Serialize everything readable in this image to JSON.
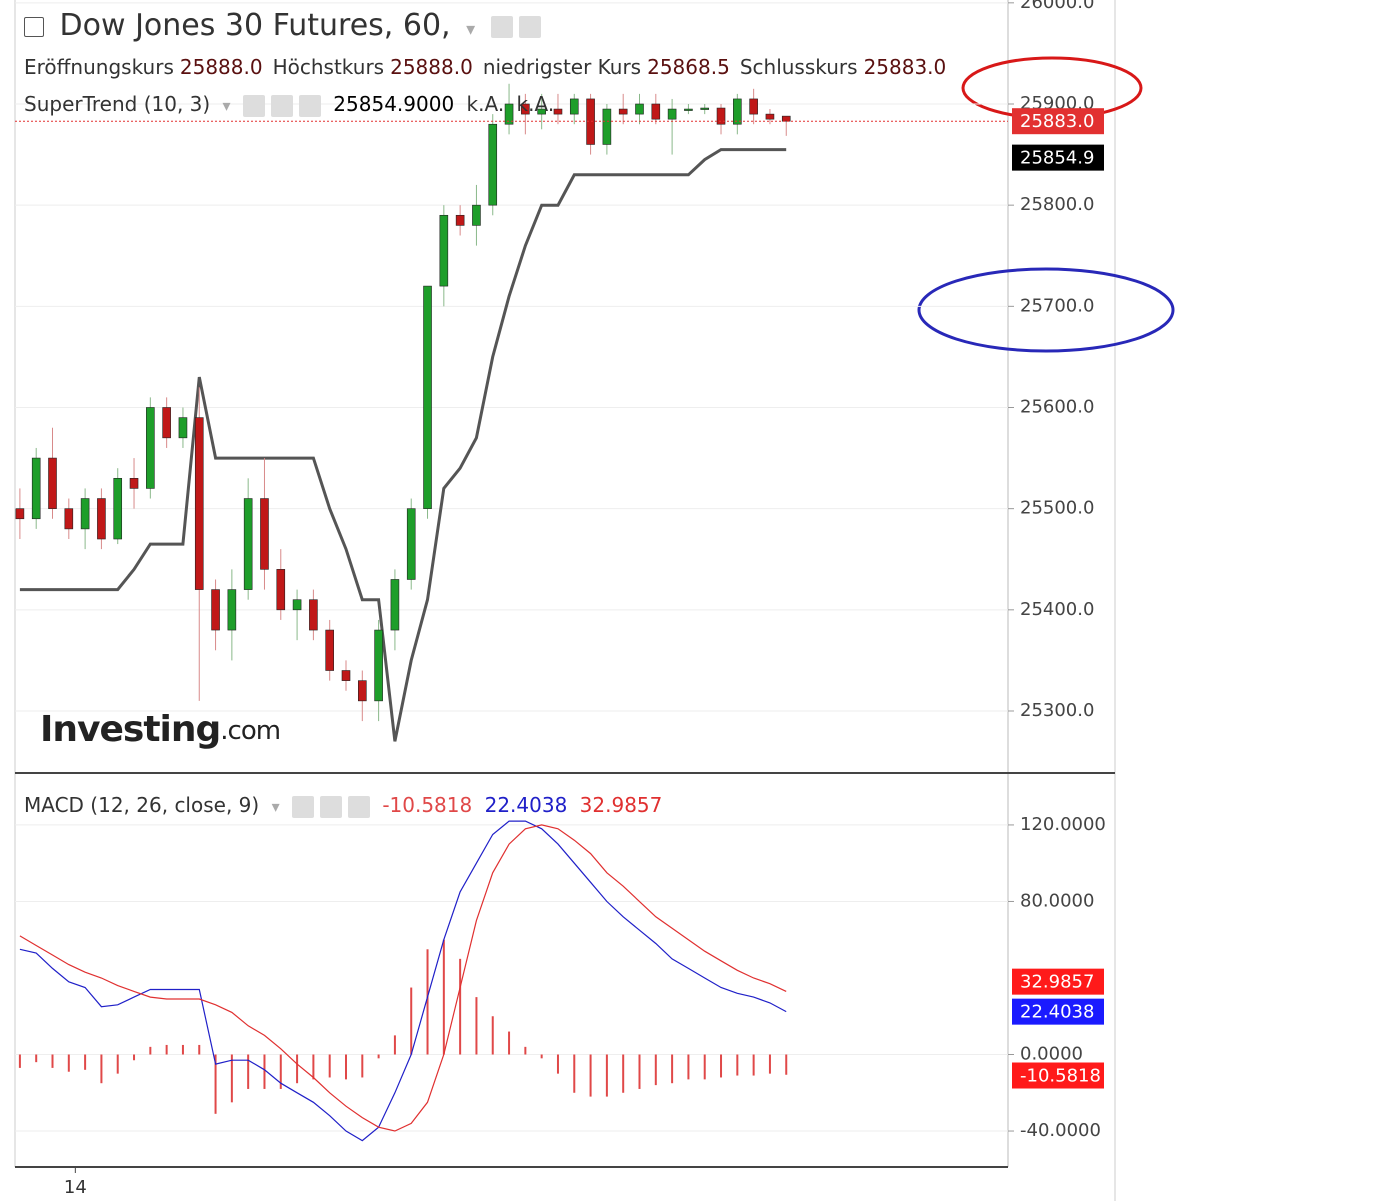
{
  "chart_data": [
    {
      "type": "candlestick",
      "title": "Dow Jones 30 Futures, 60,",
      "legend": [
        {
          "label": "Eröffnungskurs",
          "value": "25888.0"
        },
        {
          "label": "Höchstkurs",
          "value": "25888.0"
        },
        {
          "label": "niedrigster Kurs",
          "value": "25868.5"
        },
        {
          "label": "Schlusskurs",
          "value": "25883.0"
        }
      ],
      "logo": "Investing",
      "logo_suffix": ".com",
      "categories": [
        null,
        null,
        null,
        null,
        null,
        null,
        null,
        null,
        null,
        null,
        null,
        null,
        null,
        null,
        null,
        null,
        null,
        null,
        null,
        null,
        null,
        null,
        null,
        null,
        null,
        null,
        null,
        null,
        null,
        null,
        null,
        null,
        null,
        null,
        null,
        null,
        null,
        null,
        null,
        null,
        null,
        null,
        null,
        null,
        null,
        null,
        null,
        null
      ],
      "xlim": [
        -0.3,
        60.6
      ],
      "xticks": [
        {
          "value": 3.4,
          "label": "14"
        }
      ],
      "open": [
        25500,
        25490,
        25550,
        25500,
        25480,
        25510,
        25470,
        25530,
        25520,
        25600,
        25570,
        25590,
        25420,
        25380,
        25420,
        25510,
        25440,
        25400,
        25410,
        25380,
        25340,
        25330,
        25310,
        25380,
        25430,
        25500,
        25720,
        25790,
        25780,
        25800,
        25880,
        25900,
        25890,
        25895,
        25890,
        25905,
        25860,
        25895,
        25890,
        25900,
        25885,
        25895,
        25895,
        25896,
        25880,
        25905,
        25890,
        25888
      ],
      "high": [
        25520,
        25560,
        25580,
        25510,
        25520,
        25520,
        25540,
        25550,
        25610,
        25610,
        25600,
        25620,
        25430,
        25440,
        25530,
        25550,
        25460,
        25420,
        25420,
        25390,
        25350,
        25340,
        25390,
        25440,
        25510,
        25720,
        25800,
        25800,
        25820,
        25890,
        25920,
        25910,
        25910,
        25910,
        25910,
        25910,
        25900,
        25910,
        25910,
        25910,
        25905,
        25900,
        25900,
        25900,
        25910,
        25915,
        25895,
        25888
      ],
      "low": [
        25470,
        25480,
        25490,
        25470,
        25460,
        25460,
        25465,
        25500,
        25510,
        25560,
        25560,
        25310,
        25360,
        25350,
        25410,
        25420,
        25390,
        25370,
        25370,
        25330,
        25320,
        25290,
        25290,
        25360,
        25420,
        25490,
        25700,
        25770,
        25760,
        25790,
        25870,
        25870,
        25875,
        25880,
        25880,
        25850,
        25850,
        25880,
        25880,
        25880,
        25850,
        25890,
        25890,
        25870,
        25870,
        25880,
        25880,
        25868.5
      ],
      "close": [
        25490,
        25550,
        25500,
        25480,
        25510,
        25470,
        25530,
        25520,
        25600,
        25570,
        25590,
        25420,
        25380,
        25420,
        25510,
        25440,
        25400,
        25410,
        25380,
        25340,
        25330,
        25310,
        25380,
        25430,
        25500,
        25720,
        25790,
        25780,
        25800,
        25880,
        25900,
        25890,
        25895,
        25890,
        25905,
        25860,
        25895,
        25890,
        25900,
        25885,
        25895,
        25895,
        25896,
        25880,
        25905,
        25890,
        25885,
        25883
      ],
      "close_label": "25883.0",
      "up_color": "#1e9e2a",
      "down_color": "#c01818",
      "close_line_color": "#e23030",
      "series": [
        {
          "name": "SuperTrend (10, 3)",
          "color": "#555555",
          "legend_value": "25854.9000",
          "legend_extra": [
            "k.A.",
            "k.A."
          ],
          "last_label": "25854.9",
          "values": [
            25420,
            25420,
            25420,
            25420,
            25420,
            25420,
            25420,
            25440,
            25465,
            25465,
            25465,
            25630,
            25550,
            25550,
            25550,
            25550,
            25550,
            25550,
            25550,
            25500,
            25460,
            25410,
            25410,
            25270,
            25350,
            25410,
            25520,
            25540,
            25570,
            25650,
            25710,
            25760,
            25800,
            25800,
            25830,
            25830,
            25830,
            25830,
            25830,
            25830,
            25830,
            25830,
            25845,
            25854.9,
            25854.9,
            25854.9,
            25854.9,
            25854.9
          ]
        }
      ],
      "ylim": [
        25238.7,
        26002.8
      ],
      "yticks": [
        {
          "value": 25300,
          "label": "25300.0"
        },
        {
          "value": 25400,
          "label": "25400.0"
        },
        {
          "value": 25500,
          "label": "25500.0"
        },
        {
          "value": 25600,
          "label": "25600.0"
        },
        {
          "value": 25700,
          "label": "25700.0"
        },
        {
          "value": 25800,
          "label": "25800.0"
        },
        {
          "value": 25900,
          "label": "25900.0"
        },
        {
          "value": 26000,
          "label": "26000.0"
        }
      ],
      "grid": true
    },
    {
      "type": "macd",
      "title": "MACD (12, 26, close, 9)",
      "xlim": [
        -0.3,
        60.6
      ],
      "series": [
        {
          "kind": "histogram",
          "color": "#e04848",
          "legend_value": "-10.5818",
          "last_label": "-10.5818",
          "values": [
            -7,
            -4,
            -7,
            -9,
            -8,
            -15,
            -10,
            -3,
            4,
            5,
            5,
            5,
            -31,
            -25,
            -18,
            -18,
            -18,
            -15,
            -13,
            -12,
            -13,
            -12,
            -2,
            10,
            35,
            55,
            60,
            50,
            30,
            20,
            12,
            4,
            -2,
            -10,
            -20,
            -22,
            -22,
            -20,
            -18,
            -16,
            -15,
            -13,
            -13,
            -12,
            -11,
            -11,
            -10,
            -10.5818
          ]
        },
        {
          "kind": "line",
          "color": "#2020c8",
          "legend_value": "22.4038",
          "last_label": "22.4038",
          "values": [
            55,
            53,
            45,
            38,
            35,
            25,
            26,
            30,
            34,
            34,
            34,
            34,
            -5,
            -3,
            -3,
            -8,
            -15,
            -20,
            -25,
            -32,
            -40,
            -45,
            -38,
            -20,
            0,
            30,
            60,
            85,
            100,
            115,
            122,
            122,
            118,
            110,
            100,
            90,
            80,
            72,
            65,
            58,
            50,
            45,
            40,
            35,
            32,
            30,
            27,
            22.4038
          ]
        },
        {
          "kind": "line",
          "color": "#e03030",
          "legend_value": "32.9857",
          "last_label": "32.9857",
          "values": [
            62,
            57,
            52,
            47,
            43,
            40,
            36,
            33,
            30,
            29,
            29,
            29,
            26,
            22,
            15,
            10,
            3,
            -5,
            -12,
            -20,
            -27,
            -33,
            -38,
            -40,
            -36,
            -25,
            0,
            35,
            70,
            95,
            110,
            118,
            120,
            118,
            112,
            105,
            95,
            88,
            80,
            72,
            66,
            60,
            54,
            49,
            44,
            40,
            37,
            32.9857
          ]
        }
      ],
      "ylim": [
        -58.8,
        146.1
      ],
      "yticks": [
        {
          "value": -40,
          "label": "-40.0000"
        },
        {
          "value": 0,
          "label": "0.0000"
        },
        {
          "value": 80,
          "label": "80.0000"
        },
        {
          "value": 120,
          "label": "120.0000"
        }
      ],
      "grid": true
    }
  ]
}
